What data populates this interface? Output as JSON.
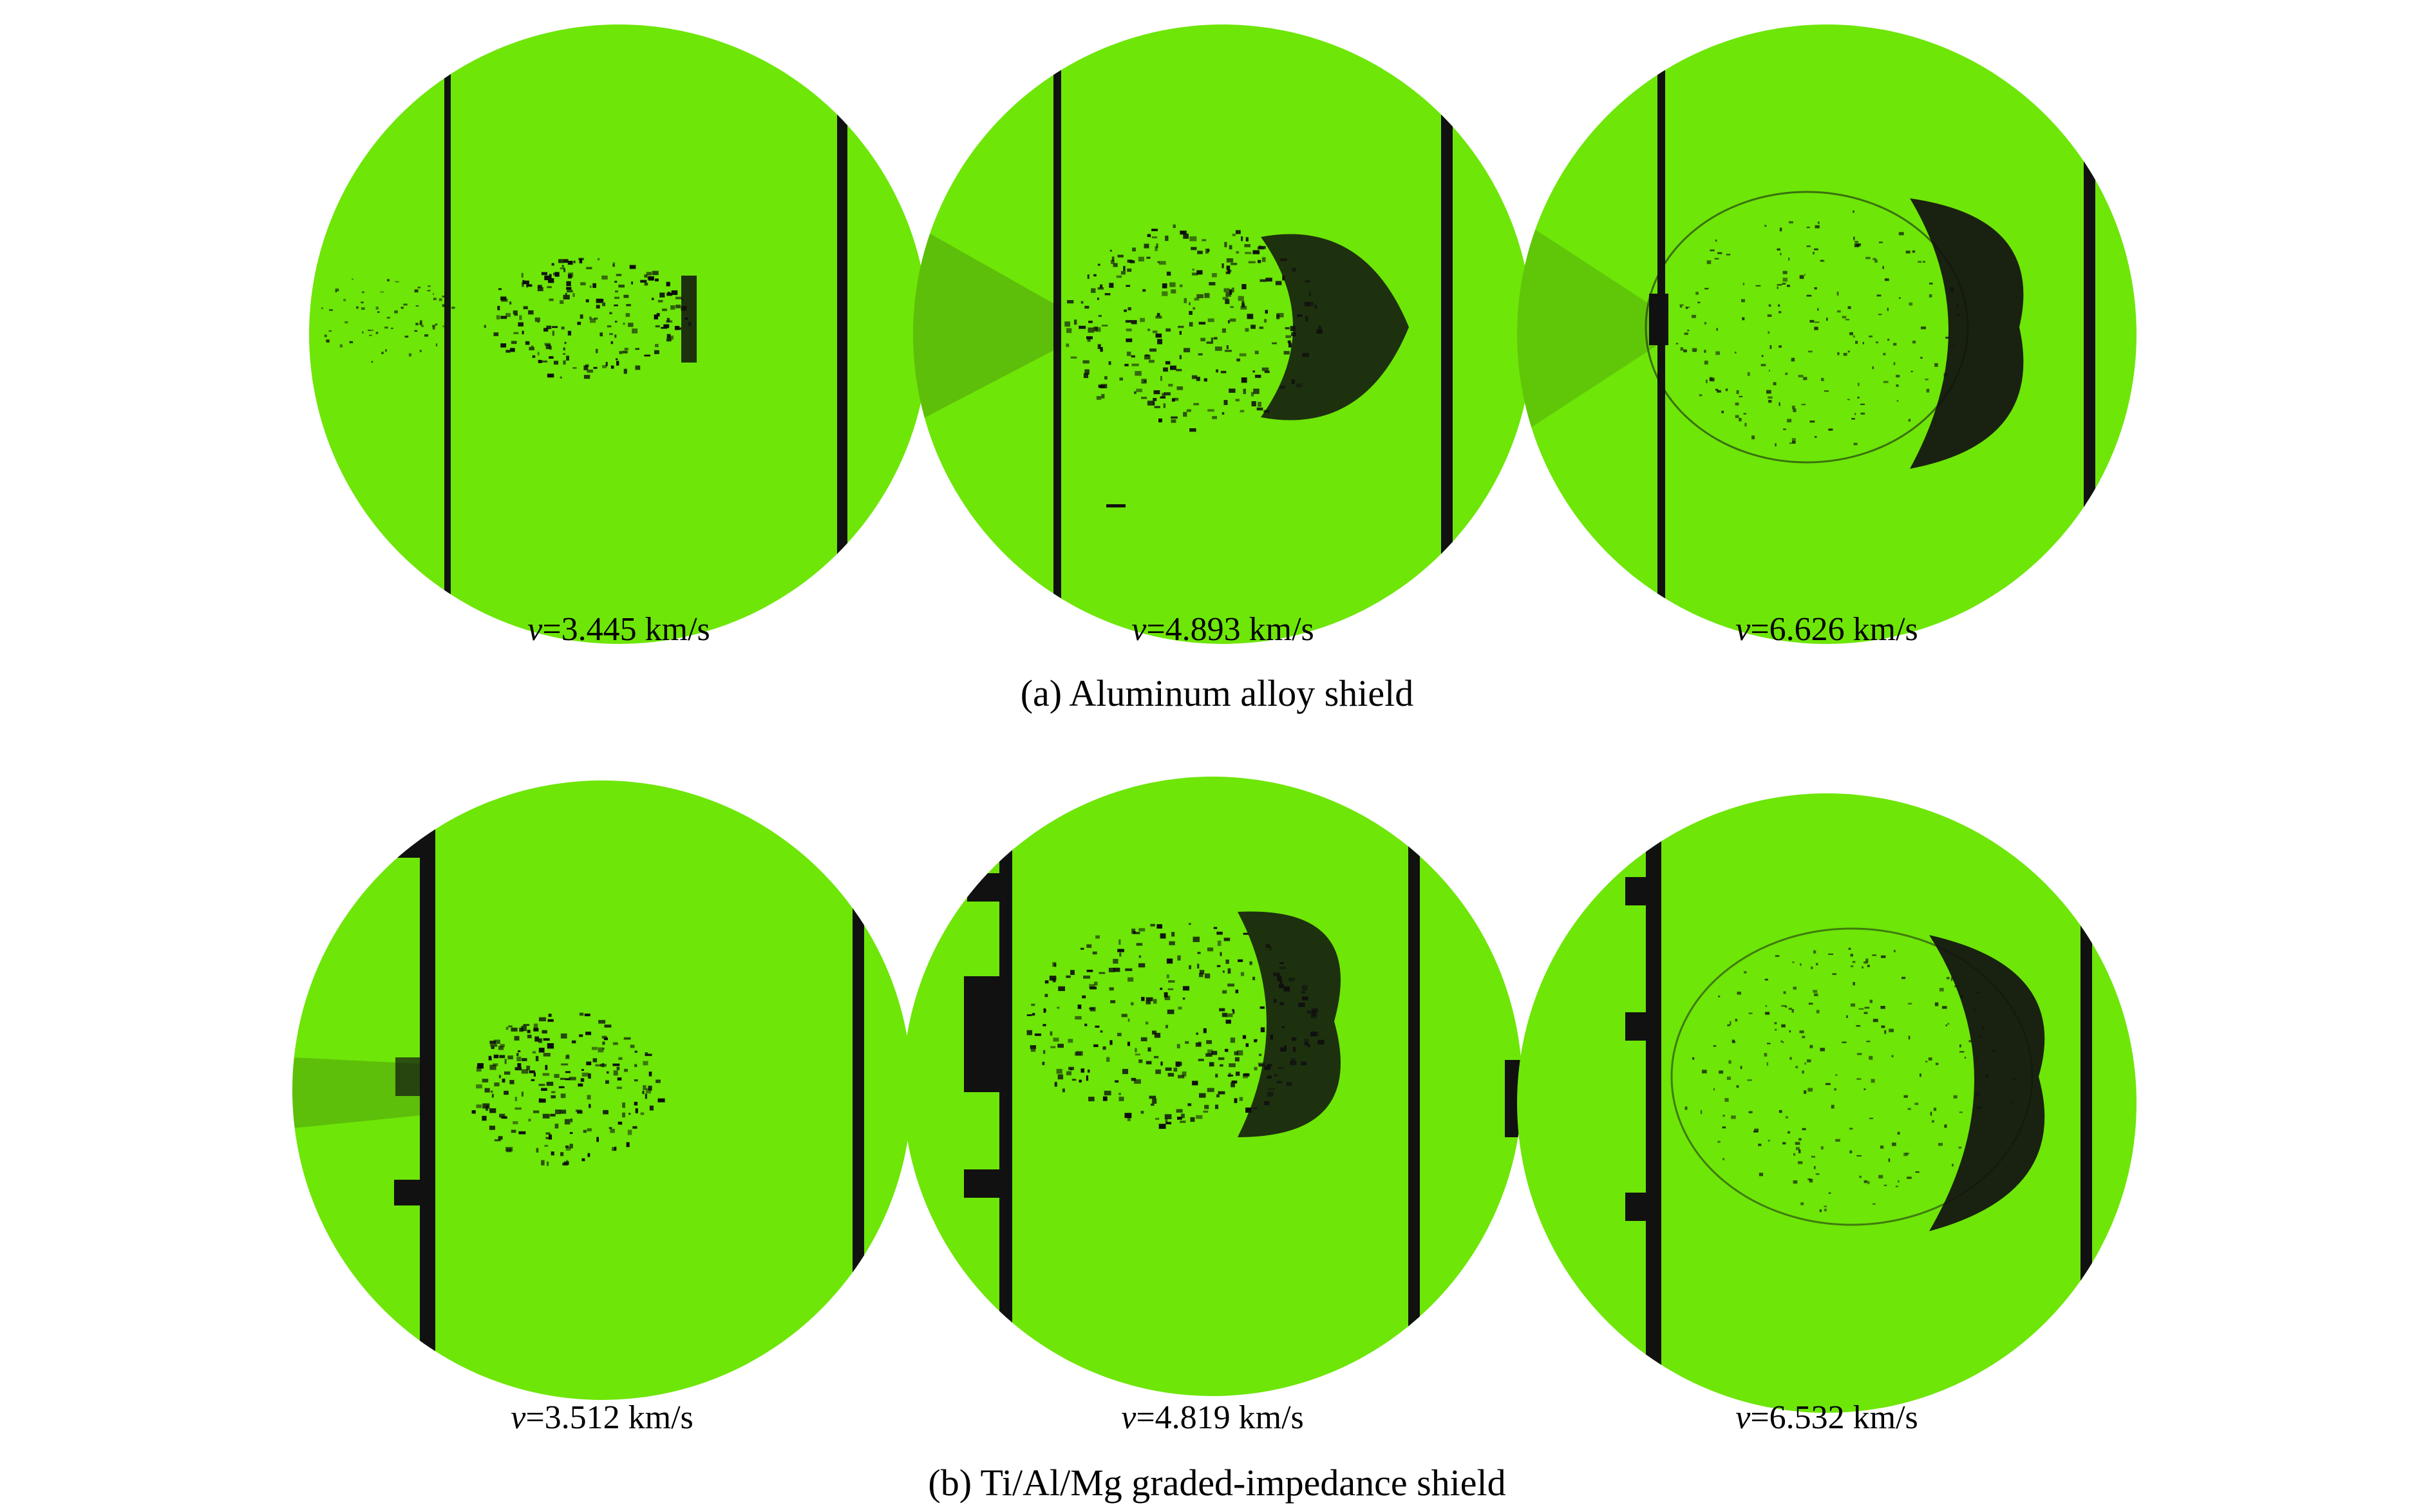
{
  "colors": {
    "background": "#6ee608",
    "debris": "#0d0d0d",
    "plate": "#111111"
  },
  "row_a": {
    "caption": "(a) Aluminum alloy shield",
    "frames": [
      {
        "v_symbol": "v",
        "speed": "=3.445 km/s"
      },
      {
        "v_symbol": "v",
        "speed": "=4.893 km/s"
      },
      {
        "v_symbol": "v",
        "speed": "=6.626 km/s"
      }
    ]
  },
  "row_b": {
    "caption": "(b) Ti/Al/Mg graded-impedance shield",
    "frames": [
      {
        "v_symbol": "v",
        "speed": "=3.512 km/s"
      },
      {
        "v_symbol": "v",
        "speed": "=4.819 km/s"
      },
      {
        "v_symbol": "v",
        "speed": "=6.532 km/s"
      }
    ]
  }
}
